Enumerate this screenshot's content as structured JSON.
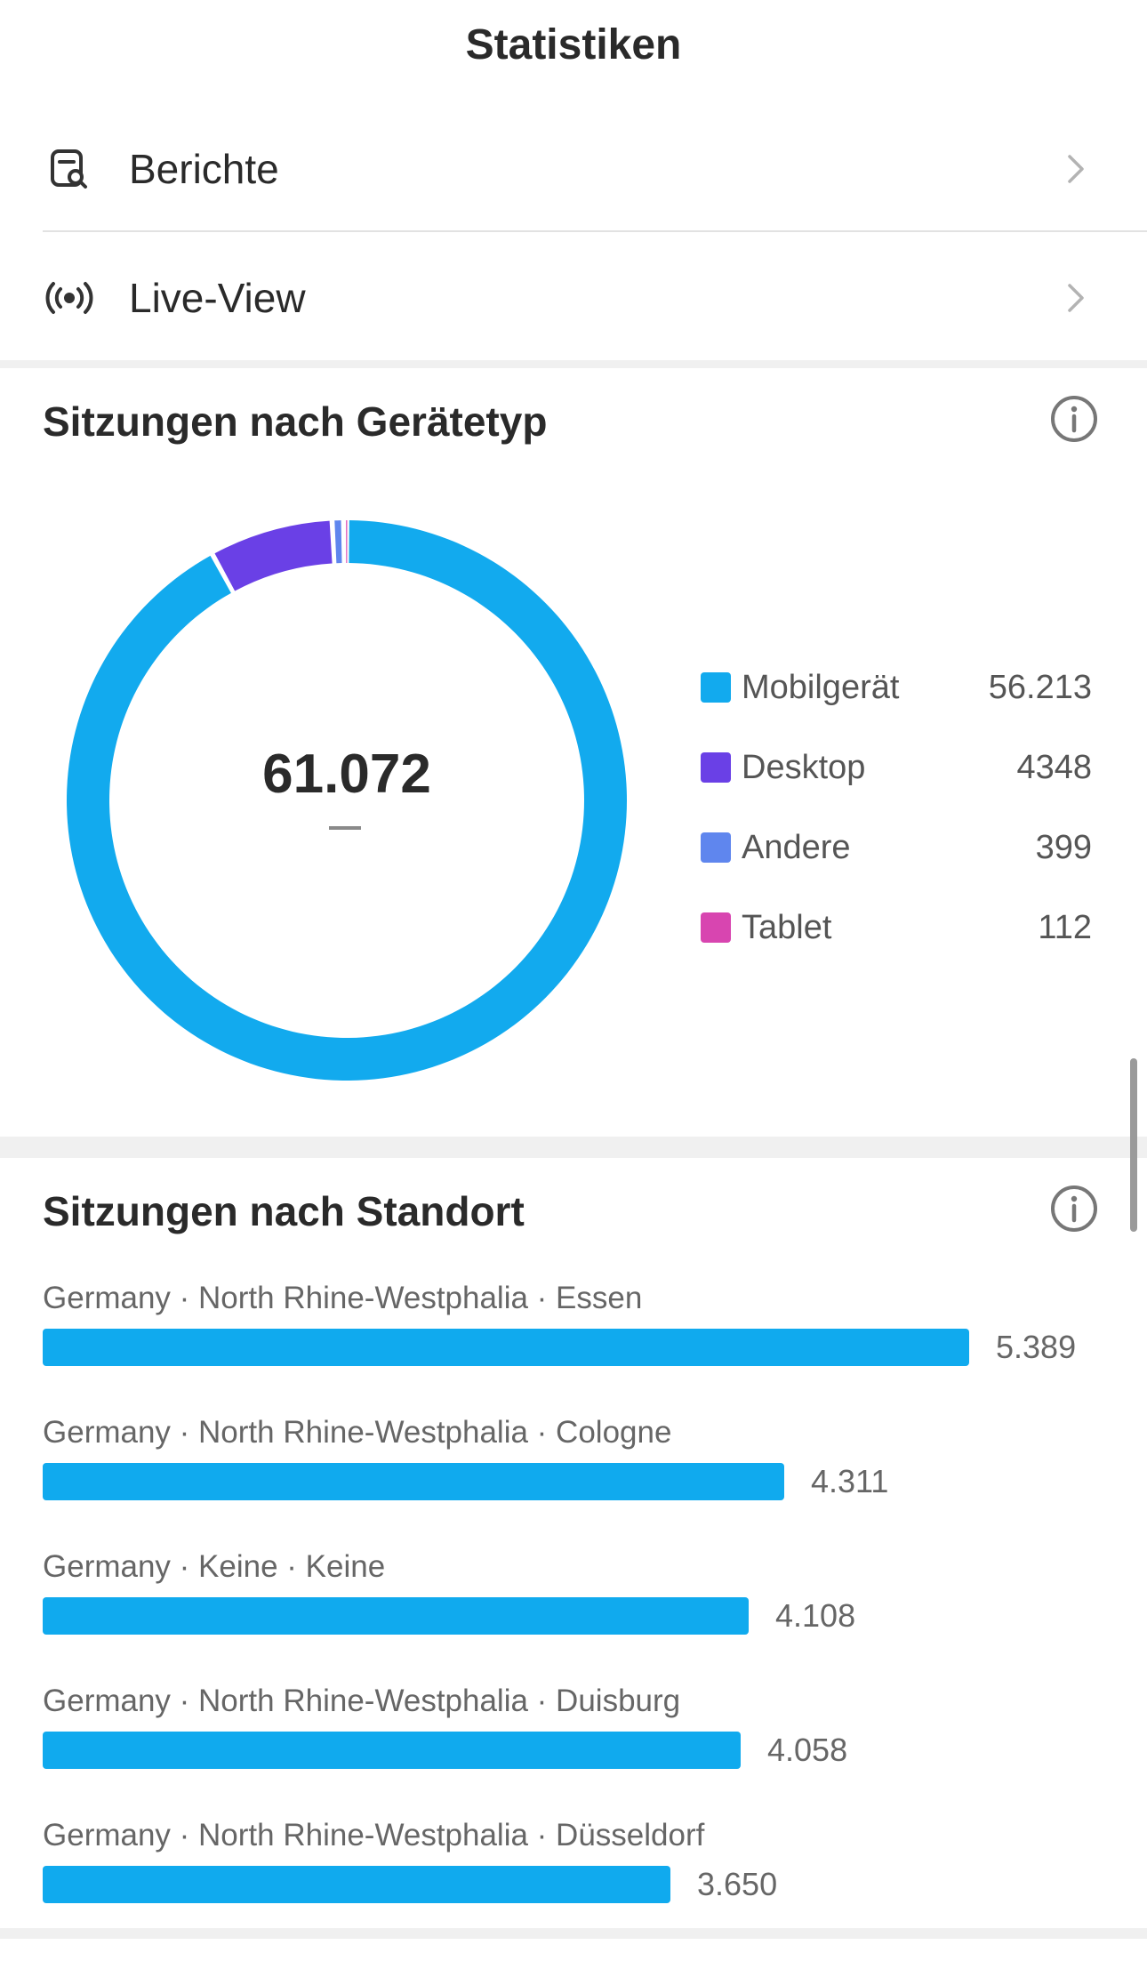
{
  "header": {
    "title": "Statistiken"
  },
  "nav": {
    "items": [
      {
        "label": "Berichte",
        "icon": "report-search-icon"
      },
      {
        "label": "Live-View",
        "icon": "broadcast-icon"
      }
    ]
  },
  "device_card": {
    "title": "Sitzungen nach Gerätetyp",
    "total": "61.072",
    "legend": [
      {
        "label": "Mobilgerät",
        "value": "56.213",
        "color": "#12aaee"
      },
      {
        "label": "Desktop",
        "value": "4348",
        "color": "#6a40e6"
      },
      {
        "label": "Andere",
        "value": "399",
        "color": "#5f86ee"
      },
      {
        "label": "Tablet",
        "value": "112",
        "color": "#d845b0"
      }
    ]
  },
  "location_card": {
    "title": "Sitzungen nach Standort",
    "bar_color": "#10aaee",
    "items": [
      {
        "label": "Germany · North Rhine-Westphalia · Essen",
        "value": "5.389",
        "count": 5389
      },
      {
        "label": "Germany · North Rhine-Westphalia · Cologne",
        "value": "4.311",
        "count": 4311
      },
      {
        "label": "Germany · Keine · Keine",
        "value": "4.108",
        "count": 4108
      },
      {
        "label": "Germany · North Rhine-Westphalia · Duisburg",
        "value": "4.058",
        "count": 4058
      },
      {
        "label": "Germany · North Rhine-Westphalia · Düsseldorf",
        "value": "3.650",
        "count": 3650
      }
    ]
  },
  "chart_data": {
    "type": "pie",
    "categories": [
      "Mobilgerät",
      "Desktop",
      "Andere",
      "Tablet"
    ],
    "values": [
      56213,
      4348,
      399,
      112
    ],
    "title": "Sitzungen nach Gerätetyp",
    "total": 61072,
    "legend": "right"
  }
}
